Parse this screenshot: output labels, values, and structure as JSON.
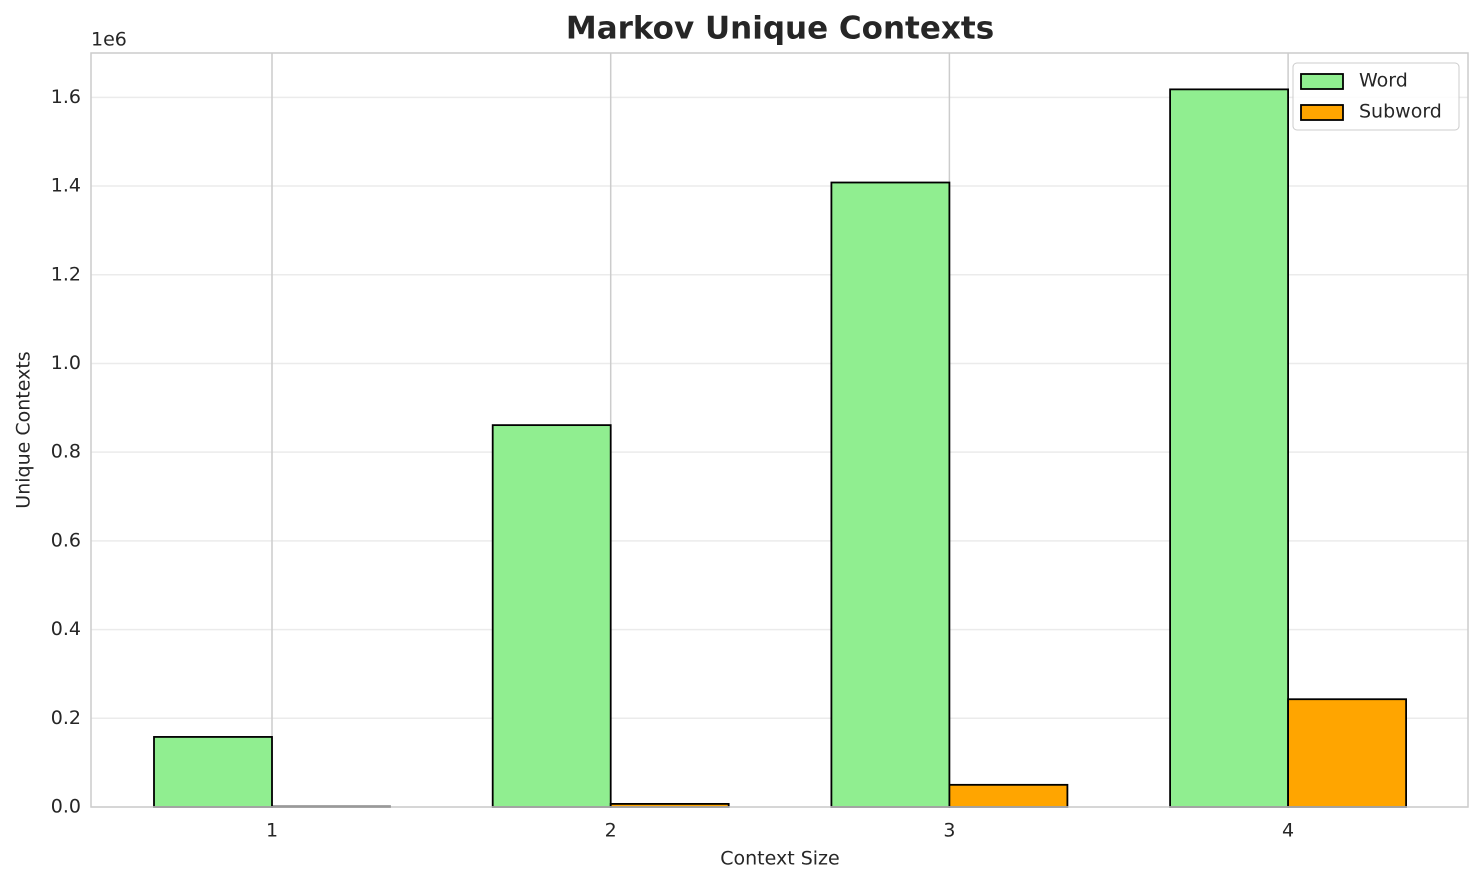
{
  "chart_data": {
    "type": "bar",
    "title": "Markov Unique Contexts",
    "xlabel": "Context Size",
    "ylabel": "Unique Contexts",
    "offset_label": "1e6",
    "categories": [
      "1",
      "2",
      "3",
      "4"
    ],
    "series": [
      {
        "name": "Word",
        "color": "#90ee90",
        "values": [
          158000,
          861000,
          1408000,
          1618000
        ]
      },
      {
        "name": "Subword",
        "color": "#ffa500",
        "values": [
          1000,
          7000,
          50000,
          243000
        ]
      }
    ],
    "ylim": [
      0,
      1700000
    ],
    "yticks": [
      {
        "value": 0,
        "label": "0.0"
      },
      {
        "value": 200000,
        "label": "0.2"
      },
      {
        "value": 400000,
        "label": "0.4"
      },
      {
        "value": 600000,
        "label": "0.6"
      },
      {
        "value": 800000,
        "label": "0.8"
      },
      {
        "value": 1000000,
        "label": "1.0"
      },
      {
        "value": 1200000,
        "label": "1.2"
      },
      {
        "value": 1400000,
        "label": "1.4"
      },
      {
        "value": 1600000,
        "label": "1.6"
      }
    ],
    "grid": true,
    "legend": "upper right"
  }
}
